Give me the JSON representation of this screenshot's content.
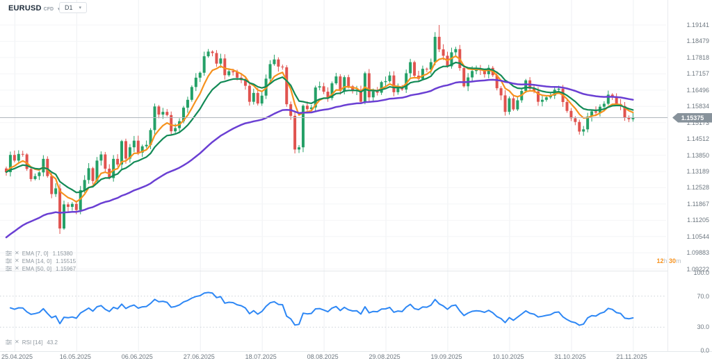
{
  "app": {
    "symbol": "EURUSD",
    "symbol_type": "CFD",
    "timeframe": "D1",
    "caret": "▾"
  },
  "price_axis": {
    "labels": [
      "1.19141",
      "1.18479",
      "1.17818",
      "1.17157",
      "1.16496",
      "1.15834",
      "1.15173",
      "1.14512",
      "1.13850",
      "1.13189",
      "1.12528",
      "1.11867",
      "1.11205",
      "1.10544",
      "1.09883",
      "1.09222"
    ],
    "current_price": "1.15375"
  },
  "countdown": {
    "value_1": "12",
    "unit_1": "h",
    "value_2": "30",
    "unit_2": "m"
  },
  "indicators": [
    {
      "name": "EMA",
      "params": "[7, 0]",
      "value": "1.15380",
      "color": "#f6921e",
      "settings_icon": "sliders-icon",
      "remove_icon": "close-icon"
    },
    {
      "name": "EMA",
      "params": "[14, 0]",
      "value": "1.15515",
      "color": "#128a56",
      "settings_icon": "sliders-icon",
      "remove_icon": "close-icon"
    },
    {
      "name": "EMA",
      "params": "[50, 0]",
      "value": "1.15967",
      "color": "#6a3fd3",
      "settings_icon": "sliders-icon",
      "remove_icon": "close-icon"
    }
  ],
  "rsi_panel": {
    "name": "RSI",
    "params": "[14]",
    "value": "43.2",
    "color": "#2d87f5",
    "axis_labels": [
      "100.0",
      "70.0",
      "30.0",
      "0.0"
    ],
    "guide_levels": [
      70,
      30
    ]
  },
  "date_axis": {
    "labels": [
      "25.04.2025",
      "16.05.2025",
      "06.06.2025",
      "27.06.2025",
      "18.07.2025",
      "08.08.2025",
      "29.08.2025",
      "19.09.2025",
      "10.10.2025",
      "31.10.2025",
      "21.11.2025"
    ],
    "tick_indices": [
      2,
      17,
      32,
      47,
      62,
      77,
      92,
      107,
      122,
      137,
      152
    ]
  },
  "colors": {
    "candle_up": "#24a067",
    "candle_down": "#e0534f",
    "ema7": "#f6921e",
    "ema14": "#128a56",
    "ema50": "#6a3fd3",
    "rsi_line": "#2d87f5",
    "badge_bg": "#87929b",
    "grid_v": "#eef0f3",
    "grid_h": "#f4f5f7",
    "price_line": "#b0b6bd",
    "guide_dotted": "#ccd1d7"
  },
  "chart_data": {
    "type": "candlestick",
    "title": "EURUSD CFD, D1 with EMA(7), EMA(14), EMA(50) and RSI(14)",
    "x_start_date": "23.04.2025",
    "x_end_date": "21.11.2025",
    "frequency": "weekdays",
    "y_axis_range": [
      1.09222,
      1.19141
    ],
    "current_price": 1.15375,
    "open_rule": "previous_close",
    "closes": [
      1.1316,
      1.1386,
      1.1363,
      1.139,
      1.1388,
      1.1329,
      1.1288,
      1.13,
      1.1315,
      1.137,
      1.13,
      1.1227,
      1.125,
      1.1087,
      1.1185,
      1.1175,
      1.1187,
      1.1162,
      1.1243,
      1.1284,
      1.1332,
      1.128,
      1.1363,
      1.1388,
      1.133,
      1.1292,
      1.137,
      1.1347,
      1.1442,
      1.1371,
      1.1417,
      1.1444,
      1.1395,
      1.1421,
      1.1427,
      1.1487,
      1.1583,
      1.155,
      1.1561,
      1.1548,
      1.1482,
      1.1495,
      1.1523,
      1.1578,
      1.161,
      1.1662,
      1.17,
      1.172,
      1.1787,
      1.1806,
      1.18,
      1.1757,
      1.1778,
      1.171,
      1.1726,
      1.1722,
      1.17,
      1.169,
      1.1667,
      1.1602,
      1.1638,
      1.1595,
      1.1627,
      1.1696,
      1.1755,
      1.1774,
      1.1745,
      1.1742,
      1.1592,
      1.1545,
      1.1408,
      1.1417,
      1.1586,
      1.1572,
      1.1579,
      1.166,
      1.1665,
      1.1643,
      1.1617,
      1.1677,
      1.1705,
      1.1646,
      1.1702,
      1.1665,
      1.1648,
      1.1651,
      1.1602,
      1.1718,
      1.162,
      1.1644,
      1.1639,
      1.1682,
      1.1686,
      1.1709,
      1.1641,
      1.1659,
      1.1652,
      1.1718,
      1.1763,
      1.1708,
      1.1695,
      1.1736,
      1.1733,
      1.1763,
      1.1866,
      1.1815,
      1.1789,
      1.1746,
      1.1803,
      1.1816,
      1.1739,
      1.1665,
      1.1701,
      1.1727,
      1.1734,
      1.173,
      1.1714,
      1.174,
      1.171,
      1.1657,
      1.1628,
      1.1561,
      1.1616,
      1.1571,
      1.1608,
      1.1646,
      1.1689,
      1.1655,
      1.1644,
      1.1602,
      1.161,
      1.162,
      1.1627,
      1.1651,
      1.1655,
      1.1601,
      1.1565,
      1.1535,
      1.152,
      1.1481,
      1.149,
      1.1542,
      1.1563,
      1.1558,
      1.1582,
      1.1594,
      1.1631,
      1.1622,
      1.1593,
      1.1585,
      1.1538,
      1.1531,
      1.15375
    ],
    "wick_overrides": {
      "highs": {
        "104": 1.1885,
        "105": 1.19141
      },
      "lows": {
        "13": 1.1065,
        "70": 1.1392
      }
    },
    "overlays": [
      {
        "type": "ema",
        "period": 7,
        "last_value": 1.1538
      },
      {
        "type": "ema",
        "period": 14,
        "last_value": 1.15515
      },
      {
        "type": "ema",
        "period": 50,
        "last_value": 1.15967,
        "seed": 1.104
      }
    ],
    "sub_chart": {
      "type": "rsi",
      "period": 14,
      "last_value": 43.2,
      "range": [
        0,
        100
      ],
      "guides": [
        70,
        30
      ]
    }
  }
}
